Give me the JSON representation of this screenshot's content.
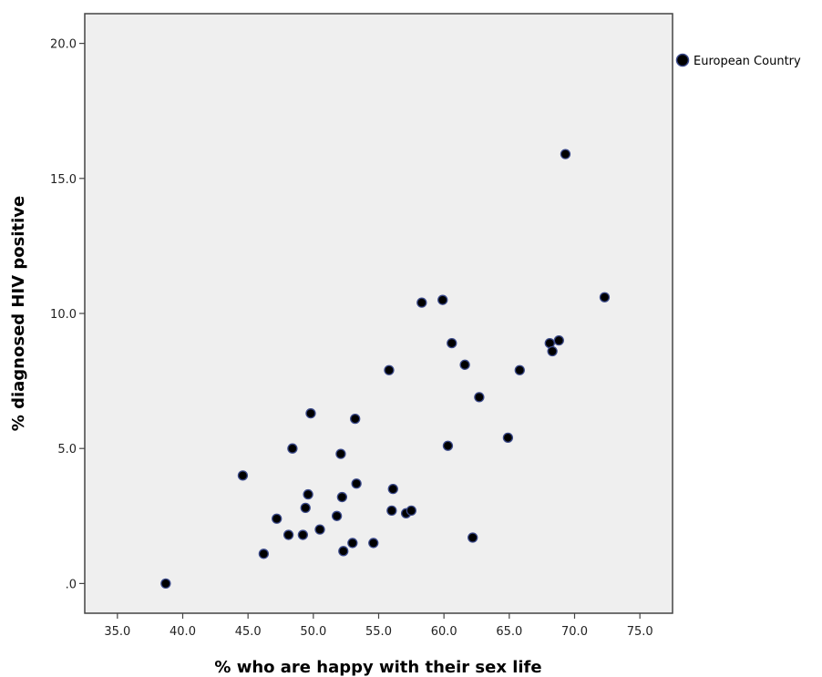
{
  "chart_data": {
    "type": "scatter",
    "xlabel": "% who are happy with their sex life",
    "ylabel": "% diagnosed HIV positive",
    "xlim": [
      32.5,
      77.5
    ],
    "ylim": [
      -1.1,
      21.1
    ],
    "xticks": [
      35,
      40,
      45,
      50,
      55,
      60,
      65,
      70,
      75
    ],
    "xtick_labels": [
      "35.0",
      "40.0",
      "45.0",
      "50.0",
      "55.0",
      "60.0",
      "65.0",
      "70.0",
      "75.0"
    ],
    "yticks": [
      0,
      5,
      10,
      15,
      20
    ],
    "ytick_labels": [
      ".0",
      "5.0",
      "10.0",
      "15.0",
      "20.0"
    ],
    "grid": false,
    "legend_position": "right",
    "colors": {
      "plot_background": "#efefef",
      "marker_fill": "#000000",
      "marker_edge": "#3b4a8a"
    },
    "series": [
      {
        "name": "European Country",
        "points": [
          [
            38.7,
            0.0
          ],
          [
            44.6,
            4.0
          ],
          [
            46.2,
            1.1
          ],
          [
            47.2,
            2.4
          ],
          [
            48.1,
            1.8
          ],
          [
            48.4,
            5.0
          ],
          [
            49.2,
            1.8
          ],
          [
            49.4,
            2.8
          ],
          [
            49.6,
            3.3
          ],
          [
            49.8,
            6.3
          ],
          [
            50.5,
            2.0
          ],
          [
            51.8,
            2.5
          ],
          [
            52.1,
            4.8
          ],
          [
            52.2,
            3.2
          ],
          [
            52.3,
            1.2
          ],
          [
            53.0,
            1.5
          ],
          [
            53.2,
            6.1
          ],
          [
            53.3,
            3.7
          ],
          [
            54.6,
            1.5
          ],
          [
            55.8,
            7.9
          ],
          [
            56.0,
            2.7
          ],
          [
            56.1,
            3.5
          ],
          [
            57.1,
            2.6
          ],
          [
            57.5,
            2.7
          ],
          [
            58.3,
            10.4
          ],
          [
            59.9,
            10.5
          ],
          [
            60.3,
            5.1
          ],
          [
            60.6,
            8.9
          ],
          [
            61.6,
            8.1
          ],
          [
            62.2,
            1.7
          ],
          [
            62.7,
            6.9
          ],
          [
            64.9,
            5.4
          ],
          [
            65.8,
            7.9
          ],
          [
            68.1,
            8.9
          ],
          [
            68.3,
            8.6
          ],
          [
            68.8,
            9.0
          ],
          [
            69.3,
            15.9
          ],
          [
            72.3,
            10.6
          ]
        ]
      }
    ]
  }
}
